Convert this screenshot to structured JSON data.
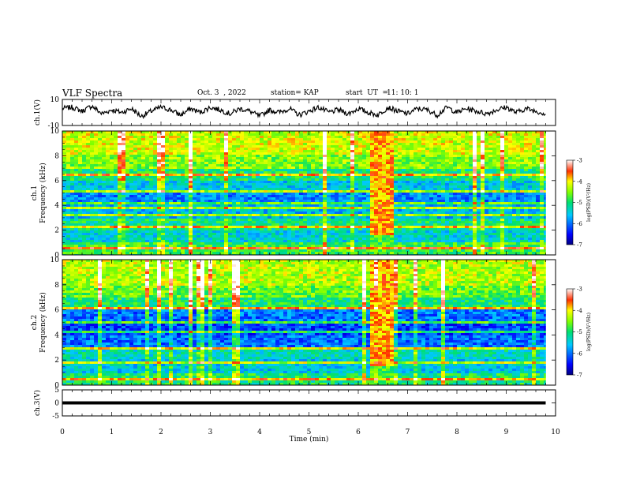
{
  "header": {
    "title": "VLF Spectra",
    "date": "Oct. 3  , 2022",
    "station": "station= KAP",
    "start_label": "start  UT  =",
    "start_value": "11: 10: 1"
  },
  "chart_data": [
    {
      "type": "line",
      "panel": "ch1-waveform",
      "ylabel": "ch.1(V)",
      "ylim": [
        -10,
        10
      ],
      "yticks": [
        "10",
        "-10"
      ],
      "xlim": [
        0,
        10
      ],
      "color": "#000000",
      "x": [
        0.0,
        0.2,
        0.4,
        0.6,
        0.8,
        1.0,
        1.2,
        1.4,
        1.6,
        1.8,
        2.0,
        2.2,
        2.4,
        2.6,
        2.8,
        3.0,
        3.2,
        3.4,
        3.6,
        3.8,
        4.0,
        4.2,
        4.4,
        4.6,
        4.8,
        5.0,
        5.2,
        5.4,
        5.6,
        5.8,
        6.0,
        6.2,
        6.4,
        6.6,
        6.8,
        7.0,
        7.2,
        7.4,
        7.6,
        7.8,
        8.0,
        8.2,
        8.4,
        8.6,
        8.8,
        9.0,
        9.2,
        9.4,
        9.6,
        9.8
      ],
      "values": [
        3,
        4,
        1,
        5,
        -1,
        2,
        0,
        3,
        -3,
        1,
        4,
        2,
        -2,
        3,
        0,
        4,
        2,
        -1,
        3,
        1,
        -3,
        2,
        0,
        3,
        -2,
        1,
        4,
        0,
        2,
        -1,
        3,
        0,
        -2,
        4,
        1,
        -1,
        3,
        2,
        -2,
        4,
        0,
        3,
        1,
        -1,
        2,
        4,
        0,
        3,
        1,
        -1
      ]
    },
    {
      "type": "heatmap",
      "panel": "ch1-spectrogram",
      "ylabel_top": "ch.1",
      "ylabel": "Frequency  (kHz)",
      "ylim": [
        0,
        10
      ],
      "yticks": [
        "0",
        "2",
        "4",
        "6",
        "8",
        "10"
      ],
      "xlim": [
        0,
        9.8
      ],
      "colorbar": {
        "label": "log(PSD)(V²/Hz)",
        "ticks": [
          "-3",
          "-4",
          "-5",
          "-6",
          "-7"
        ],
        "range": [
          -7,
          -3
        ]
      },
      "band_levels_by_khz": [
        {
          "f0": 0,
          "f1": 1,
          "value": -4.8
        },
        {
          "f0": 1,
          "f1": 2,
          "value": -5.4
        },
        {
          "f0": 2,
          "f1": 3,
          "value": -5.1
        },
        {
          "f0": 3,
          "f1": 4,
          "value": -5.6
        },
        {
          "f0": 4,
          "f1": 5,
          "value": -5.9
        },
        {
          "f0": 5,
          "f1": 6,
          "value": -5.5
        },
        {
          "f0": 6,
          "f1": 7,
          "value": -5.0
        },
        {
          "f0": 7,
          "f1": 8,
          "value": -4.5
        },
        {
          "f0": 8,
          "f1": 10,
          "value": -4.2
        }
      ],
      "tone_lines_khz": [
        0.5,
        1.6,
        2.2,
        3.2,
        3.8,
        4.1,
        5.2,
        6.4
      ],
      "burst_interval_min": [
        6.25,
        6.65
      ]
    },
    {
      "type": "heatmap",
      "panel": "ch2-spectrogram",
      "ylabel_top": "ch.2",
      "ylabel": "Frequency  (kHz)",
      "ylim": [
        0,
        10
      ],
      "yticks": [
        "0",
        "2",
        "4",
        "6",
        "8",
        "10"
      ],
      "xlim": [
        0,
        9.8
      ],
      "colorbar": {
        "label": "log(PSD)(V²/Hz)",
        "ticks": [
          "-3",
          "-4",
          "-5",
          "-6",
          "-7"
        ],
        "range": [
          -7,
          -3
        ]
      },
      "band_levels_by_khz": [
        {
          "f0": 0,
          "f1": 1,
          "value": -5.0
        },
        {
          "f0": 1,
          "f1": 2,
          "value": -5.5
        },
        {
          "f0": 2,
          "f1": 3,
          "value": -5.3
        },
        {
          "f0": 3,
          "f1": 4,
          "value": -6.0
        },
        {
          "f0": 4,
          "f1": 5,
          "value": -6.2
        },
        {
          "f0": 5,
          "f1": 6,
          "value": -6.0
        },
        {
          "f0": 6,
          "f1": 7,
          "value": -5.0
        },
        {
          "f0": 7,
          "f1": 8,
          "value": -4.6
        },
        {
          "f0": 8,
          "f1": 10,
          "value": -4.3
        }
      ],
      "tone_lines_khz": [
        0.4,
        1.8,
        2.9,
        3.4,
        4.3,
        5.0,
        6.1
      ],
      "burst_interval_min": [
        6.25,
        6.65
      ]
    },
    {
      "type": "line",
      "panel": "ch3-waveform",
      "ylabel": "ch.3(V)",
      "ylim": [
        -5,
        5
      ],
      "yticks": [
        "5",
        "0",
        "-5"
      ],
      "xlim": [
        0,
        10
      ],
      "xlabel": "Time  (min)",
      "xticks": [
        "0",
        "1",
        "2",
        "3",
        "4",
        "5",
        "6",
        "7",
        "8",
        "9",
        "10"
      ],
      "band": [
        -0.6,
        0.6
      ],
      "x": [
        0,
        9.8
      ],
      "values": [
        0,
        0
      ]
    }
  ]
}
